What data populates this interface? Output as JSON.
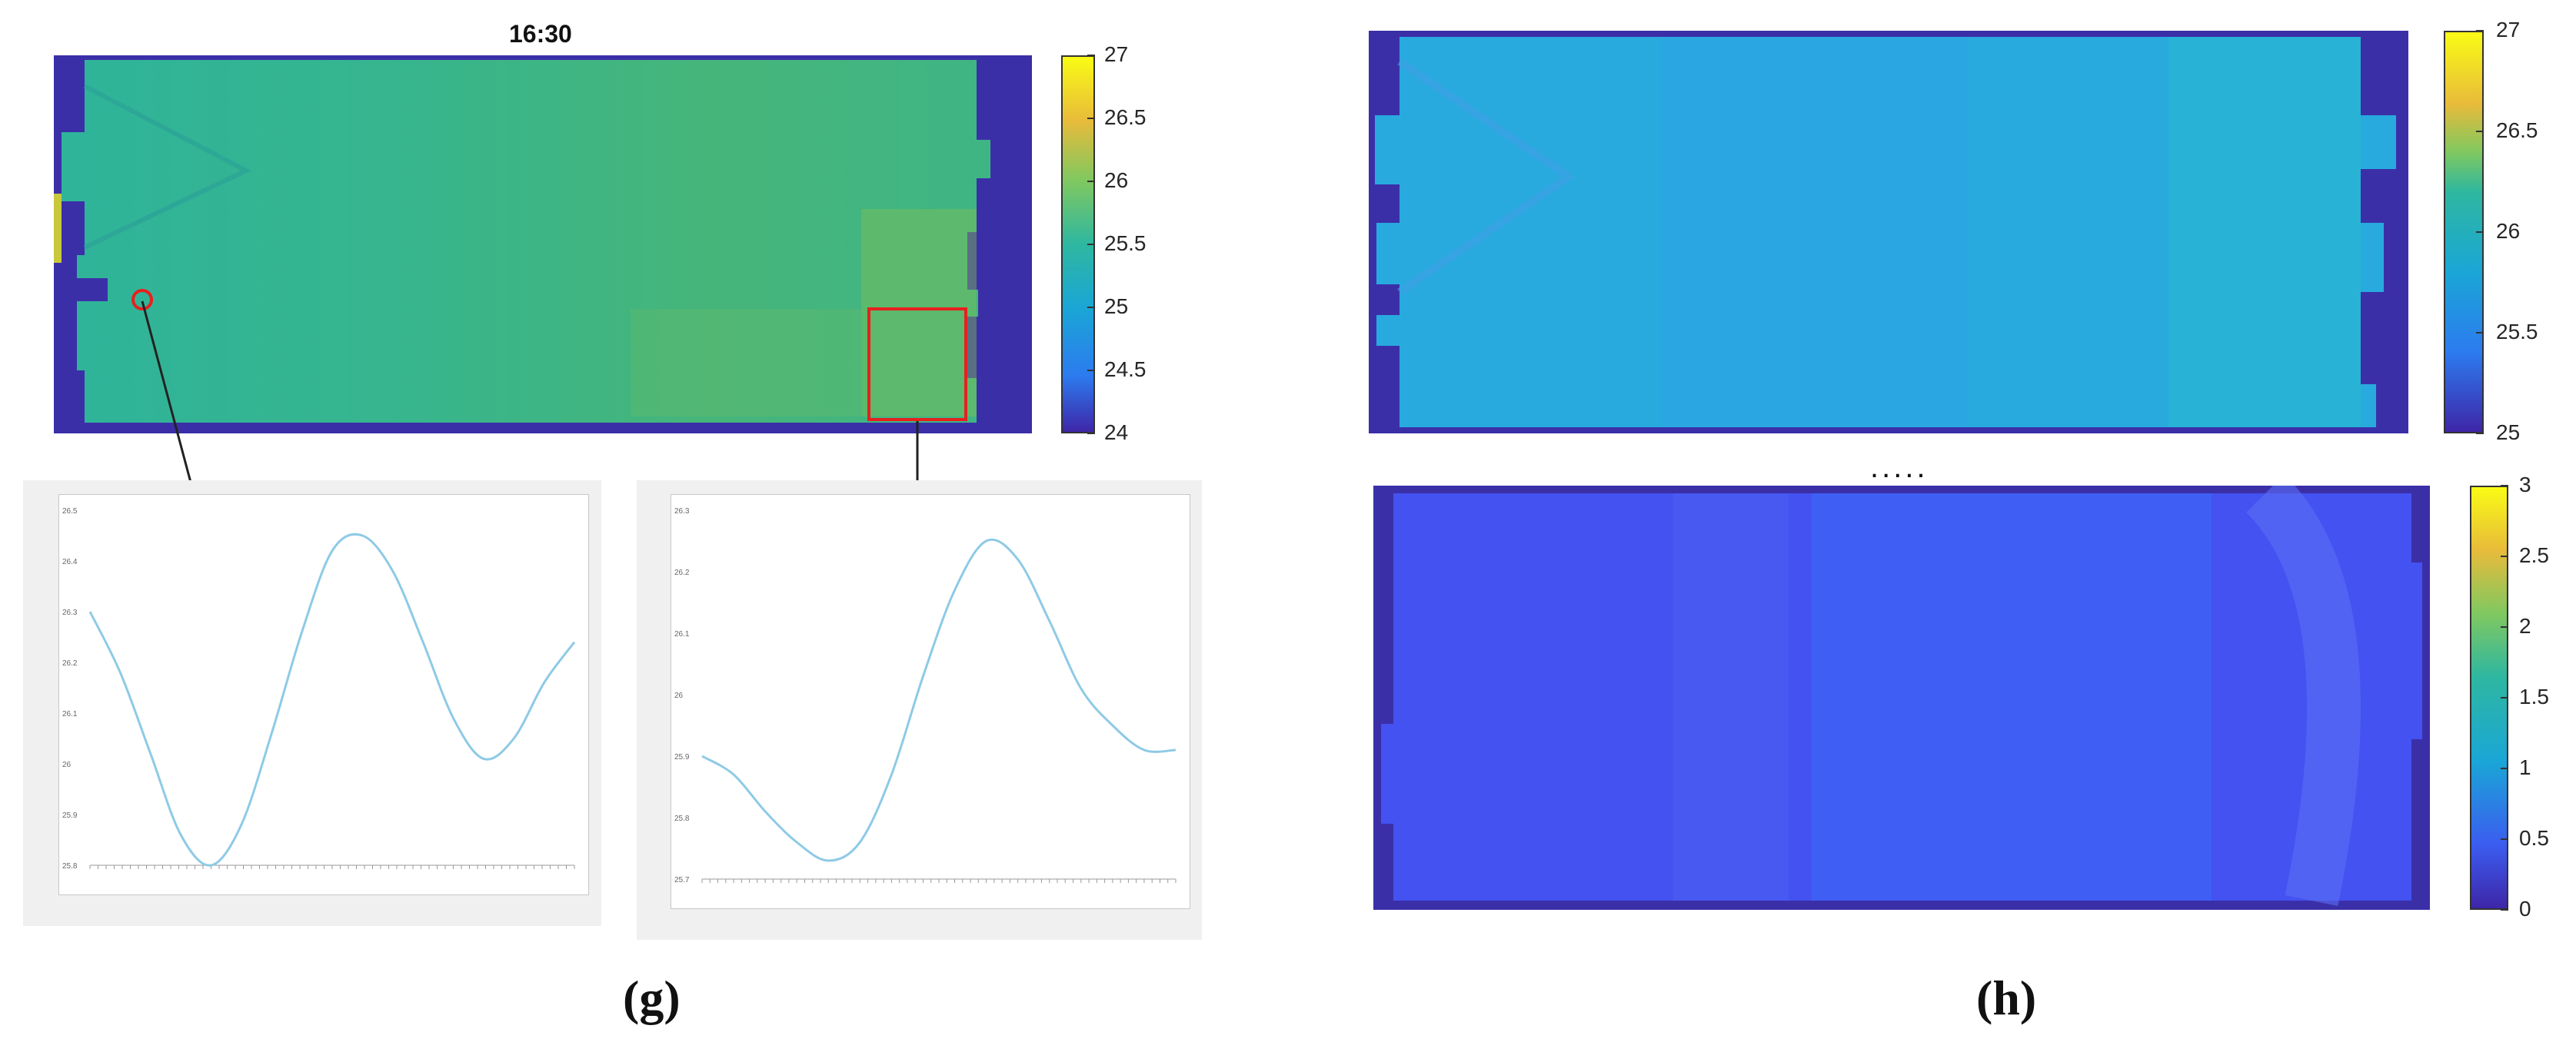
{
  "chart_data": [
    {
      "type": "heatmap",
      "title": "16:30",
      "colorbar": {
        "ticks": [
          "27",
          "26.5",
          "26",
          "25.5",
          "25",
          "24.5",
          "24"
        ],
        "range": [
          24,
          27
        ]
      },
      "annotations": [
        "red circle marker (left point)",
        "red rectangle marker (right region)"
      ]
    },
    {
      "type": "line",
      "series": [
        {
          "values": [
            26.3,
            26.18,
            26.02,
            25.86,
            25.8,
            25.88,
            26.06,
            26.26,
            26.42,
            26.45,
            26.38,
            26.24,
            26.09,
            26.01,
            26.05,
            26.16,
            26.24
          ]
        }
      ],
      "ylim": [
        25.8,
        26.5
      ],
      "yticks": [
        "26.5",
        "26.4",
        "26.3",
        "26.2",
        "26.1",
        "26",
        "25.9",
        "25.8"
      ],
      "color": "#8ecae6"
    },
    {
      "type": "line",
      "series": [
        {
          "values": [
            25.9,
            25.87,
            25.81,
            25.76,
            25.73,
            25.76,
            25.87,
            26.03,
            26.17,
            26.25,
            26.22,
            26.12,
            26.01,
            25.95,
            25.91,
            25.91
          ]
        }
      ],
      "ylim": [
        25.7,
        26.3
      ],
      "yticks": [
        "26.3",
        "26.2",
        "26.1",
        "26",
        "25.9",
        "25.8",
        "25.7"
      ],
      "color": "#8ecae6"
    },
    {
      "type": "heatmap",
      "colorbar": {
        "ticks": [
          "27",
          "26.5",
          "26",
          "25.5",
          "25"
        ],
        "range": [
          25,
          27
        ]
      }
    },
    {
      "type": "heatmap",
      "colorbar": {
        "ticks": [
          "3",
          "2.5",
          "2",
          "1.5",
          "1",
          "0.5",
          "0"
        ],
        "range": [
          0,
          3
        ]
      }
    }
  ],
  "labels": {
    "g": "(g)",
    "h": "(h)",
    "ellipsis": "....."
  },
  "colors": {
    "border": "#3b2fa8",
    "main_green": "#2fb48c",
    "light_blue": "#21a2e6",
    "low_blue": "#4352f0",
    "marker_red": "#e8201e"
  }
}
